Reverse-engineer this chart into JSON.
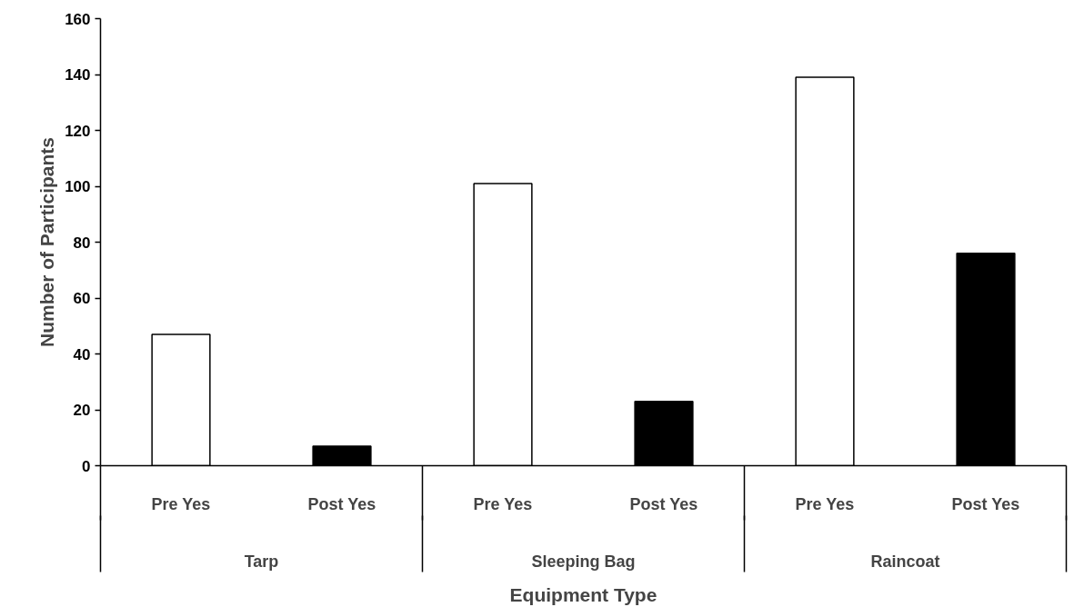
{
  "chart_data": {
    "type": "bar",
    "categories": [
      "Pre Yes",
      "Post Yes",
      "Pre Yes",
      "Post Yes",
      "Pre Yes",
      "Post Yes"
    ],
    "values": [
      47,
      7,
      101,
      23,
      139,
      76
    ],
    "colors": [
      "#ffffff",
      "#000000",
      "#ffffff",
      "#000000",
      "#ffffff",
      "#000000"
    ],
    "annotations": [
      "Tarp",
      "Sleeping Bag",
      "Raincoat"
    ],
    "xlabel": "Equipment Type",
    "ylabel": "Number of Participants",
    "ylim": [
      0,
      160
    ],
    "yticks": [
      0,
      20,
      40,
      60,
      80,
      100,
      120,
      140,
      160
    ],
    "grid": false
  }
}
